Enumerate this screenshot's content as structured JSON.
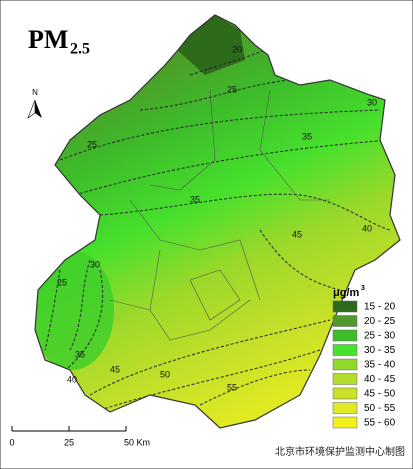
{
  "title": {
    "main": "PM",
    "subscript": "2.5"
  },
  "north_label": "N",
  "legend": {
    "unit": "μg/m",
    "unit_superscript": "3",
    "items": [
      {
        "label": "15 - 20",
        "color": "#2d6b1c"
      },
      {
        "label": "20 - 25",
        "color": "#4f9a2b"
      },
      {
        "label": "25 - 30",
        "color": "#3dbd2a"
      },
      {
        "label": "30 - 35",
        "color": "#47e22d"
      },
      {
        "label": "35 - 40",
        "color": "#8fd92b"
      },
      {
        "label": "40 - 45",
        "color": "#b2dd2b"
      },
      {
        "label": "45 - 50",
        "color": "#cbe12a"
      },
      {
        "label": "50 - 55",
        "color": "#e1ea24"
      },
      {
        "label": "55 - 60",
        "color": "#f2f21a"
      }
    ]
  },
  "contour_labels": [
    "20",
    "25",
    "30",
    "25",
    "35",
    "35",
    "40",
    "45",
    "30",
    "25",
    "35",
    "40",
    "45",
    "50",
    "55"
  ],
  "scale_bar": {
    "labels": [
      "0",
      "25",
      "50 Km"
    ]
  },
  "credit": "北京市环境保护监测中心制图"
}
